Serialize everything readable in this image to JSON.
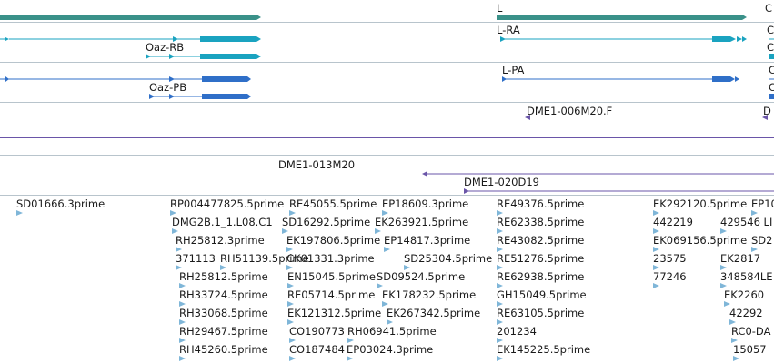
{
  "colors": {
    "gene": "#3a9189",
    "transcript_a": "#1aa3c0",
    "transcript_b": "#2f6fc8",
    "clone": "#6a55a8",
    "est": "#7fb6d8",
    "divider": "#b8c4cc"
  },
  "genes": {
    "right_gene_label": "L",
    "right_edge_fragment": "C"
  },
  "transcripts": {
    "track1": {
      "left_label": "Oaz-RB",
      "right_label": "L-RA",
      "edge": [
        "C",
        "C"
      ]
    },
    "track2": {
      "left_label": "Oaz-PB",
      "right_label": "L-PA",
      "edge": [
        "C",
        "C"
      ]
    }
  },
  "clones": {
    "top": {
      "label": "DME1-006M20.F",
      "edge": "D"
    },
    "row1": "DME1-013M20",
    "row2": "DME1-020D19"
  },
  "ests": {
    "col1": [
      "SD01666.3prime"
    ],
    "col2": [
      "RP004477825.5prime",
      "DMG2B.1_1.L08.C1",
      "RH25812.3prime",
      "371113",
      "RH25812.5prime",
      "RH33724.5prime",
      "RH33068.5prime",
      "RH29467.5prime",
      "RH45260.5prime"
    ],
    "col2b": [
      "RH51139.5prime"
    ],
    "col3": [
      "RE45055.5prime",
      "SD16292.5prime",
      "EK197806.5prime",
      "CK01331.3prime",
      "EN15045.5prime",
      "RE05714.5prime",
      "EK121312.5prime",
      "CO190773",
      "CO187484"
    ],
    "col3b": [
      "RH06941.5prime",
      "EP03024.3prime"
    ],
    "col4": [
      "EP18609.3prime",
      "EK263921.5prime",
      "EP14817.3prime",
      "SD25304.5prime",
      "SD09524.5prime",
      "EK178232.5prime",
      "EK267342.5prime"
    ],
    "col5": [
      "RE49376.5prime",
      "RE62338.5prime",
      "RE43082.5prime",
      "RE51276.5prime",
      "RE62938.5prime",
      "GH15049.5prime",
      "RE63105.5prime",
      "201234",
      "EK145225.5prime"
    ],
    "col6": [
      "EK292120.5prime",
      "442219",
      "EK069156.5prime",
      "23575",
      "77246"
    ],
    "col7": [
      "EP10",
      "429546 LI",
      "SD2",
      "EK2817",
      "348584LE",
      "EK2260",
      "42292",
      "RC0-DA",
      "15057"
    ]
  }
}
